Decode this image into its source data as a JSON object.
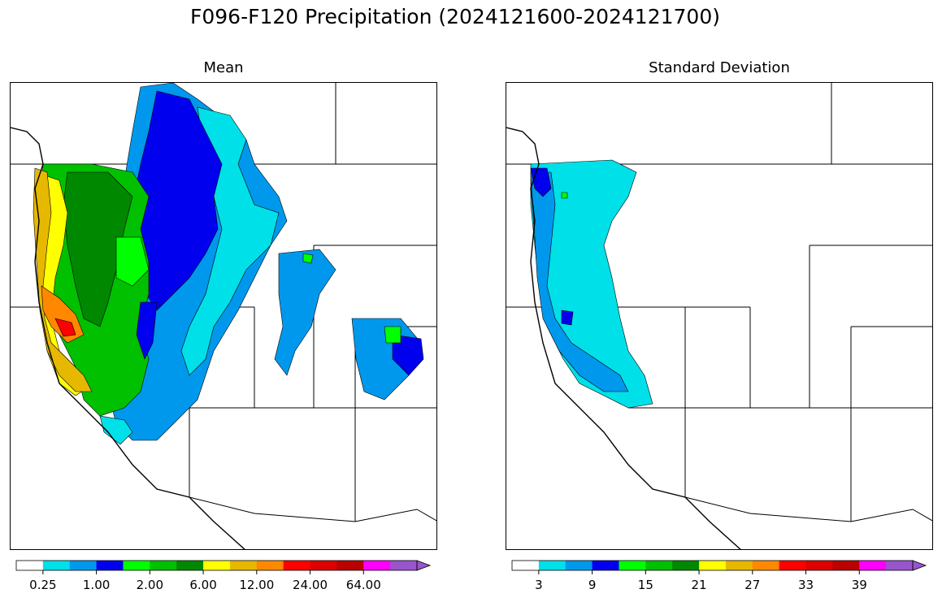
{
  "figure": {
    "title": "F096-F120 Precipitation (2024121600-2024121700)"
  },
  "palette": [
    "#ffffff",
    "#00e0e8",
    "#0098ec",
    "#0000ee",
    "#00ff00",
    "#00c000",
    "#008800",
    "#ffff00",
    "#e6b800",
    "#ff8800",
    "#ff0000",
    "#dd0000",
    "#bb0000",
    "#ff00ff",
    "#9955cc"
  ],
  "panels": [
    {
      "title": "Mean",
      "colorbar": {
        "ticks": [
          "0.25",
          "1.00",
          "2.00",
          "6.00",
          "12.00",
          "24.00",
          "64.00"
        ],
        "tick_boundaries": [
          1,
          3,
          5,
          7,
          9,
          11,
          13
        ]
      }
    },
    {
      "title": "Standard Deviation",
      "colorbar": {
        "ticks": [
          "3",
          "9",
          "15",
          "21",
          "27",
          "33",
          "39"
        ],
        "tick_boundaries": [
          1,
          3,
          5,
          7,
          9,
          11,
          13
        ]
      }
    }
  ]
}
